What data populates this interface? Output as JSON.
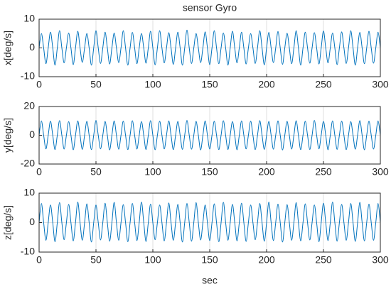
{
  "chart_data": [
    {
      "type": "line",
      "title": "sensor Gyro",
      "ylabel": "x[deg/s]",
      "color": "#0072bd",
      "grid": true,
      "xlim": [
        0,
        300
      ],
      "xticks": [
        0,
        50,
        100,
        150,
        200,
        250,
        300
      ],
      "ylim": [
        -10,
        10
      ],
      "yticks": [
        -10,
        0,
        10
      ],
      "x": [
        0,
        2,
        4,
        6,
        8,
        10,
        12,
        14,
        16,
        18,
        20,
        22,
        24,
        26,
        28,
        30,
        32,
        34,
        36,
        38,
        40,
        42,
        44,
        46,
        48,
        50,
        52,
        54,
        56,
        58,
        60,
        62,
        64,
        66,
        68,
        70,
        72,
        74,
        76,
        78,
        80,
        82,
        84,
        86,
        88,
        90,
        92,
        94,
        96,
        98,
        100,
        102,
        104,
        106,
        108,
        110,
        112,
        114,
        116,
        118,
        120,
        122,
        124,
        126,
        128,
        130,
        132,
        134,
        136,
        138,
        140,
        142,
        144,
        146,
        148,
        150,
        152,
        154,
        156,
        158,
        160,
        162,
        164,
        166,
        168,
        170,
        172,
        174,
        176,
        178,
        180,
        182,
        184,
        186,
        188,
        190,
        192,
        194,
        196,
        198,
        200,
        202,
        204,
        206,
        208,
        210,
        212,
        214,
        216,
        218,
        220,
        222,
        224,
        226,
        228,
        230,
        232,
        234,
        236,
        238,
        240,
        242,
        244,
        246,
        248,
        250,
        252,
        254,
        256,
        258,
        260,
        262,
        264,
        266,
        268,
        270,
        272,
        274,
        276,
        278,
        280,
        282,
        284,
        286,
        288,
        290,
        292,
        294,
        296,
        298,
        300
      ],
      "values": [
        0,
        5,
        0,
        -5.5,
        0,
        5.5,
        0,
        -6,
        0,
        6,
        0,
        -5.2,
        0,
        5.2,
        0,
        -5.8,
        0,
        5.8,
        0,
        -5,
        0,
        5,
        0,
        -6,
        0,
        6,
        0,
        -5.4,
        0,
        5.5,
        0,
        -5.6,
        0,
        5.2,
        0,
        -5.1,
        0,
        6,
        0,
        -6,
        0,
        5.4,
        0,
        -5.5,
        0,
        5,
        0,
        -5.3,
        0,
        5.8,
        0,
        -5.9,
        0,
        6,
        0,
        -5.2,
        0,
        5.3,
        0,
        -5.7,
        0,
        5.5,
        0,
        -6,
        0,
        6.2,
        0,
        -5.4,
        0,
        5,
        0,
        -5.1,
        0,
        5.6,
        0,
        -5.8,
        0,
        6,
        0,
        -5.5,
        0,
        5.2,
        0,
        -6,
        0,
        5.8,
        0,
        -5.2,
        0,
        5.5,
        0,
        -5.6,
        0,
        5,
        0,
        -5.4,
        0,
        6,
        0,
        -5.9,
        0,
        5.4,
        0,
        -5.1,
        0,
        5.7,
        0,
        -5.7,
        0,
        5.1,
        0,
        -5.5,
        0,
        6,
        0,
        -6,
        0,
        5.5,
        0,
        -5.3,
        0,
        5.3,
        0,
        -5.6,
        0,
        5.9,
        0,
        -5.2,
        0,
        5.2,
        0,
        -5.8,
        0,
        5.6,
        0,
        -5.4,
        0,
        6,
        0,
        -6,
        0,
        5.4,
        0,
        -5.5,
        0,
        5.8,
        0,
        -5.3,
        0,
        5.5,
        0
      ]
    },
    {
      "type": "line",
      "ylabel": "y[deg/s]",
      "color": "#0072bd",
      "grid": true,
      "xlim": [
        0,
        300
      ],
      "xticks": [
        0,
        50,
        100,
        150,
        200,
        250,
        300
      ],
      "ylim": [
        -20,
        20
      ],
      "yticks": [
        -20,
        0,
        20
      ],
      "x": [
        0,
        2,
        4,
        6,
        8,
        10,
        12,
        14,
        16,
        18,
        20,
        22,
        24,
        26,
        28,
        30,
        32,
        34,
        36,
        38,
        40,
        42,
        44,
        46,
        48,
        50,
        52,
        54,
        56,
        58,
        60,
        62,
        64,
        66,
        68,
        70,
        72,
        74,
        76,
        78,
        80,
        82,
        84,
        86,
        88,
        90,
        92,
        94,
        96,
        98,
        100,
        102,
        104,
        106,
        108,
        110,
        112,
        114,
        116,
        118,
        120,
        122,
        124,
        126,
        128,
        130,
        132,
        134,
        136,
        138,
        140,
        142,
        144,
        146,
        148,
        150,
        152,
        154,
        156,
        158,
        160,
        162,
        164,
        166,
        168,
        170,
        172,
        174,
        176,
        178,
        180,
        182,
        184,
        186,
        188,
        190,
        192,
        194,
        196,
        198,
        200,
        202,
        204,
        206,
        208,
        210,
        212,
        214,
        216,
        218,
        220,
        222,
        224,
        226,
        228,
        230,
        232,
        234,
        236,
        238,
        240,
        242,
        244,
        246,
        248,
        250,
        252,
        254,
        256,
        258,
        260,
        262,
        264,
        266,
        268,
        270,
        272,
        274,
        276,
        278,
        280,
        282,
        284,
        286,
        288,
        290,
        292,
        294,
        296,
        298,
        300
      ],
      "values": [
        0,
        10,
        0,
        -9.5,
        0,
        9.8,
        0,
        -10,
        0,
        10.2,
        0,
        -9.6,
        0,
        9.5,
        0,
        -10.1,
        0,
        10,
        0,
        -9.8,
        0,
        9.7,
        0,
        -10,
        0,
        10.3,
        0,
        -9.5,
        0,
        9.6,
        0,
        -10.2,
        0,
        10,
        0,
        -9.7,
        0,
        9.9,
        0,
        -10,
        0,
        10.1,
        0,
        -9.6,
        0,
        9.5,
        0,
        -9.9,
        0,
        10.2,
        0,
        -10.1,
        0,
        9.8,
        0,
        -9.5,
        0,
        10,
        0,
        -10,
        0,
        9.6,
        0,
        -9.8,
        0,
        10.3,
        0,
        -9.7,
        0,
        9.7,
        0,
        -10.2,
        0,
        10,
        0,
        -9.6,
        0,
        9.8,
        0,
        -10,
        0,
        10.1,
        0,
        -9.9,
        0,
        9.5,
        0,
        -10.1,
        0,
        10,
        0,
        -9.5,
        0,
        9.9,
        0,
        -10,
        0,
        10.2,
        0,
        -9.8,
        0,
        9.6,
        0,
        -9.7,
        0,
        10,
        0,
        -10.2,
        0,
        9.7,
        0,
        -9.6,
        0,
        10.1,
        0,
        -10,
        0,
        9.8,
        0,
        -9.9,
        0,
        10.3,
        0,
        -9.5,
        0,
        9.6,
        0,
        -10.1,
        0,
        10,
        0,
        -9.8,
        0,
        9.9,
        0,
        -10,
        0,
        9.5,
        0,
        -9.7,
        0,
        10.2,
        0,
        -10.1,
        0,
        9.8,
        0,
        -9.6,
        0,
        10,
        0
      ]
    },
    {
      "type": "line",
      "ylabel": "z[deg/s]",
      "xlabel": "sec",
      "color": "#0072bd",
      "grid": true,
      "xlim": [
        0,
        300
      ],
      "xticks": [
        0,
        50,
        100,
        150,
        200,
        250,
        300
      ],
      "ylim": [
        -10,
        10
      ],
      "yticks": [
        -10,
        0,
        10
      ],
      "x": [
        0,
        2,
        4,
        6,
        8,
        10,
        12,
        14,
        16,
        18,
        20,
        22,
        24,
        26,
        28,
        30,
        32,
        34,
        36,
        38,
        40,
        42,
        44,
        46,
        48,
        50,
        52,
        54,
        56,
        58,
        60,
        62,
        64,
        66,
        68,
        70,
        72,
        74,
        76,
        78,
        80,
        82,
        84,
        86,
        88,
        90,
        92,
        94,
        96,
        98,
        100,
        102,
        104,
        106,
        108,
        110,
        112,
        114,
        116,
        118,
        120,
        122,
        124,
        126,
        128,
        130,
        132,
        134,
        136,
        138,
        140,
        142,
        144,
        146,
        148,
        150,
        152,
        154,
        156,
        158,
        160,
        162,
        164,
        166,
        168,
        170,
        172,
        174,
        176,
        178,
        180,
        182,
        184,
        186,
        188,
        190,
        192,
        194,
        196,
        198,
        200,
        202,
        204,
        206,
        208,
        210,
        212,
        214,
        216,
        218,
        220,
        222,
        224,
        226,
        228,
        230,
        232,
        234,
        236,
        238,
        240,
        242,
        244,
        246,
        248,
        250,
        252,
        254,
        256,
        258,
        260,
        262,
        264,
        266,
        268,
        270,
        272,
        274,
        276,
        278,
        280,
        282,
        284,
        286,
        288,
        290,
        292,
        294,
        296,
        298,
        300
      ],
      "values": [
        0,
        6.5,
        0,
        -6,
        0,
        6,
        0,
        -6.5,
        0,
        6.8,
        0,
        -5.8,
        0,
        6.2,
        0,
        -6.2,
        0,
        7,
        0,
        -6,
        0,
        6.4,
        0,
        -6.6,
        0,
        6,
        0,
        -5.9,
        0,
        6.6,
        0,
        -6.3,
        0,
        6.9,
        0,
        -6,
        0,
        6.1,
        0,
        -6.5,
        0,
        6.5,
        0,
        -6.1,
        0,
        7,
        0,
        -6.4,
        0,
        6.3,
        0,
        -5.8,
        0,
        6,
        0,
        -6.2,
        0,
        6.7,
        0,
        -6,
        0,
        6.2,
        0,
        -6.6,
        0,
        6.5,
        0,
        -6.3,
        0,
        6.8,
        0,
        -5.9,
        0,
        6,
        0,
        -6.1,
        0,
        6.4,
        0,
        -6.5,
        0,
        6.9,
        0,
        -6,
        0,
        6.2,
        0,
        -6.2,
        0,
        6.6,
        0,
        -6.4,
        0,
        6,
        0,
        -5.8,
        0,
        6.5,
        0,
        -6.3,
        0,
        7,
        0,
        -6.1,
        0,
        6.3,
        0,
        -6.6,
        0,
        6.1,
        0,
        -6,
        0,
        6.8,
        0,
        -6.2,
        0,
        6.4,
        0,
        -5.9,
        0,
        6,
        0,
        -6.5,
        0,
        6.6,
        0,
        -6.1,
        0,
        7,
        0,
        -6.3,
        0,
        6.2,
        0,
        -6,
        0,
        6.5,
        0,
        -6.4,
        0,
        6.9,
        0,
        -6.2,
        0,
        6.3,
        0,
        -6,
        0,
        6.5,
        0
      ]
    }
  ]
}
